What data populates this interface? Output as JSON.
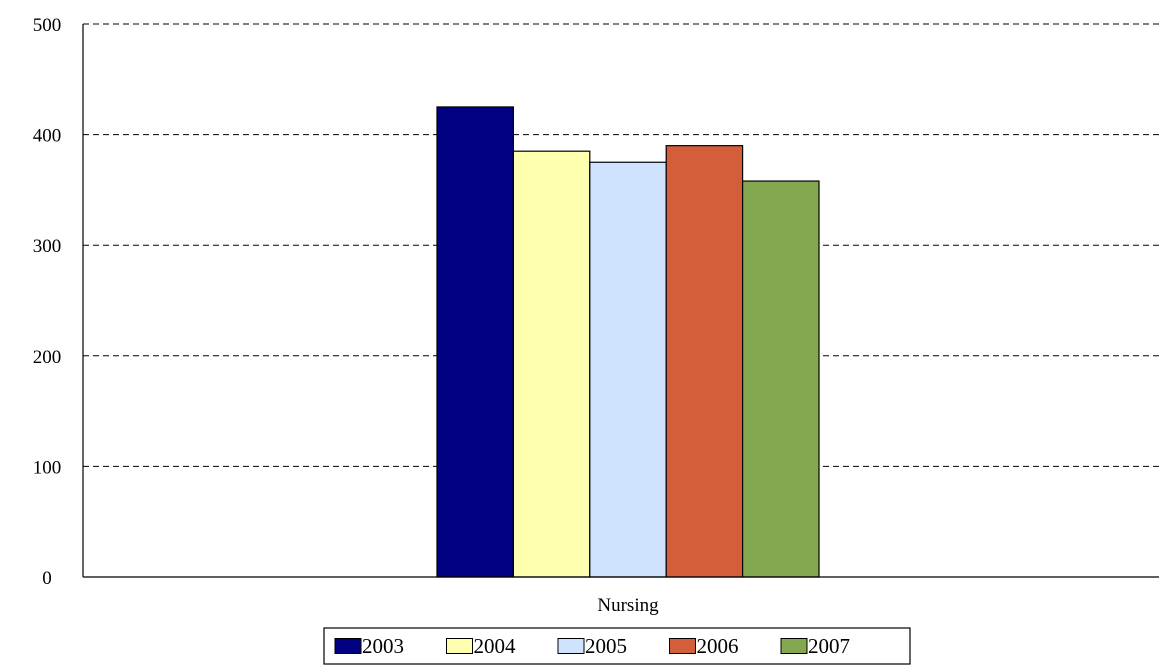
{
  "chart_data": {
    "type": "bar",
    "title": "",
    "xlabel": "",
    "ylabel": "",
    "categories": [
      "Nursing"
    ],
    "series": [
      {
        "name": "2003",
        "values": [
          425
        ],
        "color": "#000080"
      },
      {
        "name": "2004",
        "values": [
          385
        ],
        "color": "#FFFFB0"
      },
      {
        "name": "2005",
        "values": [
          375
        ],
        "color": "#CFE3FF"
      },
      {
        "name": "2006",
        "values": [
          390
        ],
        "color": "#D55E3A"
      },
      {
        "name": "2007",
        "values": [
          358
        ],
        "color": "#84A850"
      }
    ],
    "ylim": [
      0,
      500
    ],
    "yticks": [
      "0",
      "100",
      "200",
      "300",
      "400",
      "500"
    ],
    "grid": true,
    "grid_style": "dashed",
    "legend_position": "bottom"
  }
}
